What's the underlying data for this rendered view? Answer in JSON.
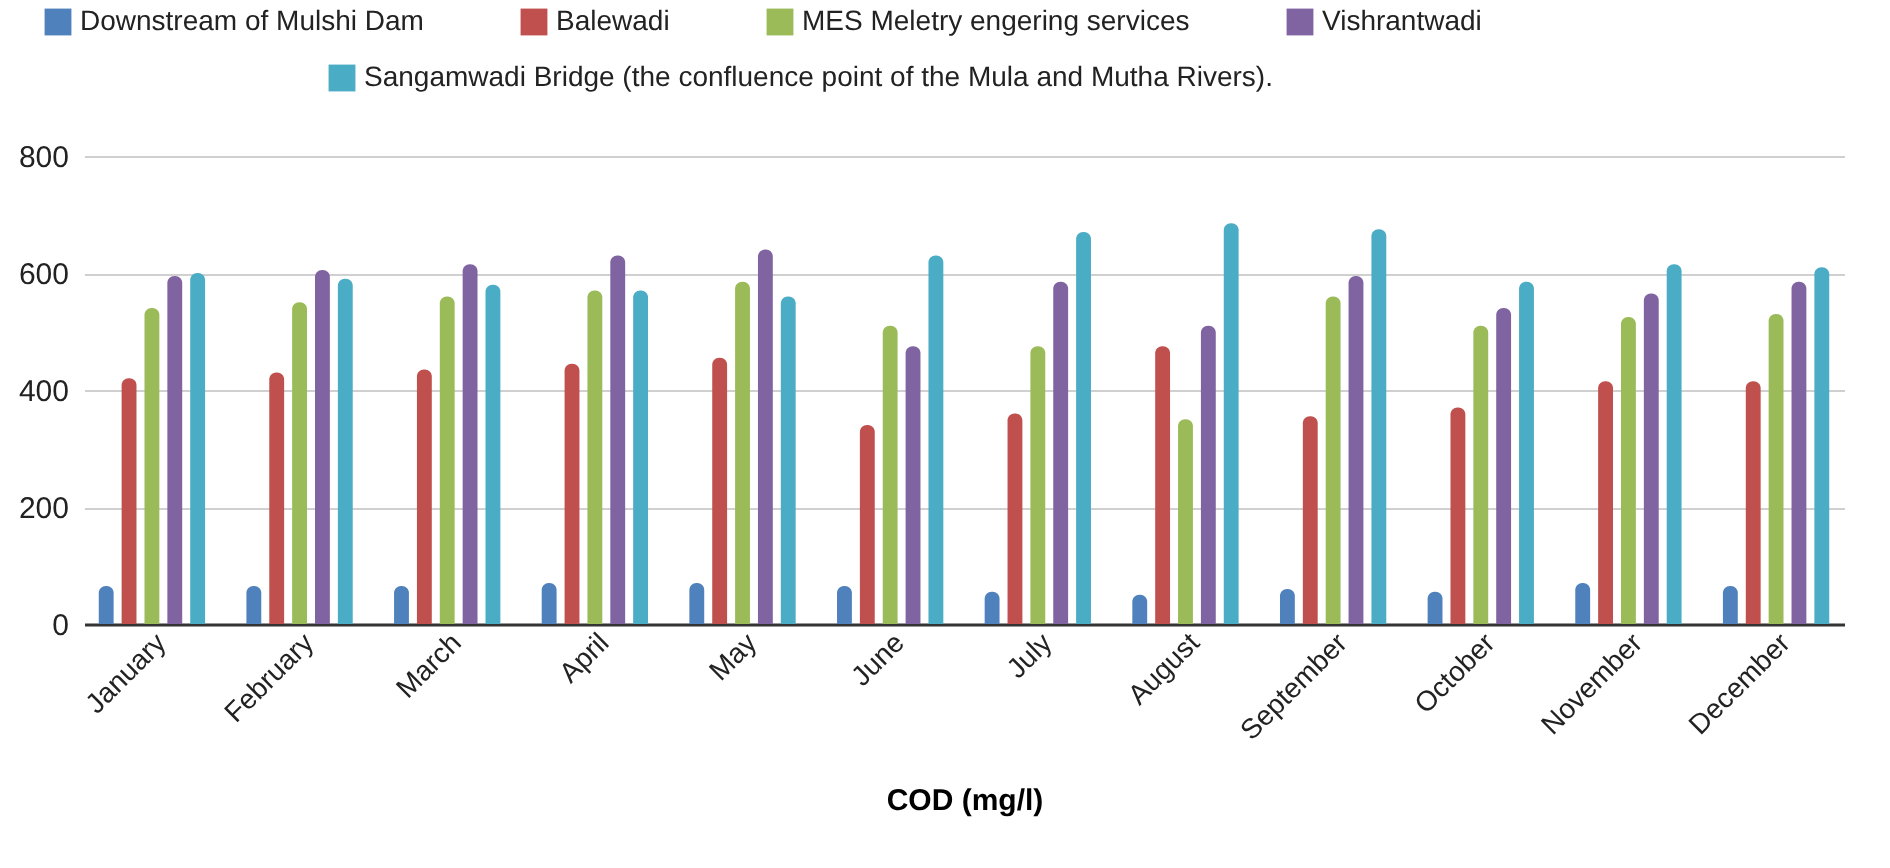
{
  "chart_data": {
    "type": "bar",
    "xlabel": "COD (mg/l)",
    "categories": [
      "January",
      "February",
      "March",
      "April",
      "May",
      "June",
      "July",
      "August",
      "September",
      "October",
      "November",
      "December"
    ],
    "series": [
      {
        "name": "Downstream of Mulshi Dam",
        "color": "#4f81bd",
        "values": [
          65,
          65,
          65,
          70,
          70,
          65,
          55,
          50,
          60,
          55,
          70,
          65
        ]
      },
      {
        "name": "Balewadi",
        "color": "#c0504d",
        "values": [
          420,
          430,
          435,
          445,
          455,
          340,
          360,
          475,
          355,
          370,
          415,
          415
        ]
      },
      {
        "name": "MES Meletry engering services",
        "color": "#9bbb59",
        "values": [
          540,
          550,
          560,
          570,
          585,
          510,
          475,
          350,
          560,
          510,
          525,
          530
        ]
      },
      {
        "name": "Vishrantwadi",
        "color": "#8064a2",
        "values": [
          595,
          605,
          615,
          630,
          640,
          475,
          585,
          510,
          595,
          540,
          565,
          585
        ]
      },
      {
        "name": "Sangamwadi Bridge (the confluence point of the Mula and Mutha Rivers).",
        "color": "#4bacc6",
        "values": [
          600,
          590,
          580,
          570,
          560,
          630,
          670,
          685,
          675,
          585,
          615,
          610
        ]
      }
    ],
    "ylim": [
      0,
      800
    ],
    "yticks": [
      0,
      200,
      400,
      600,
      800
    ],
    "grid": "y",
    "legend": "top"
  }
}
